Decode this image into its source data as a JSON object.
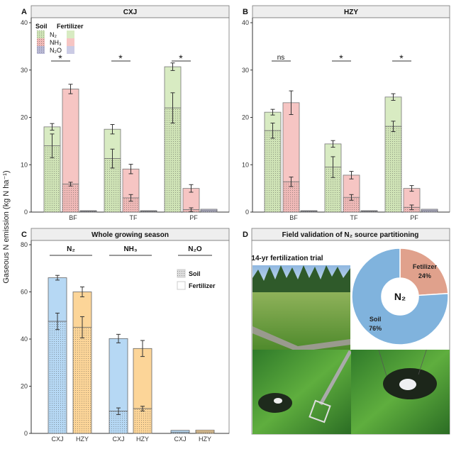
{
  "ylabel": "Gaseous N emission (kg N ha⁻¹)",
  "colors": {
    "N2": "#d8ebc2",
    "N2_soil": "#cfe3b6",
    "NH3": "#f6c5c3",
    "NH3_soil": "#efb9b7",
    "N2O": "#cbcbe4",
    "N2O_soil": "#b9b9d6",
    "CXJ": "#b6d8f4",
    "HZY": "#fcd598",
    "pie_soil": "#80b3dd",
    "pie_fertilizer": "#e0a18c"
  },
  "legend_A": {
    "soil": "Soil",
    "fertilizer": "Fertilizer",
    "items": [
      "N₂",
      "NH₃",
      "N₂O"
    ]
  },
  "legend_C": {
    "soil": "Soil",
    "fertilizer": "Fertilizer"
  },
  "chart_data": [
    {
      "panel": "A",
      "title": "CXJ",
      "type": "bar",
      "stacked": true,
      "categories": [
        "BF",
        "TF",
        "PF"
      ],
      "ylim": [
        0,
        40
      ],
      "yticks": [
        0,
        10,
        20,
        30,
        40
      ],
      "series": [
        {
          "name": "N₂",
          "total": [
            18.0,
            17.5,
            30.7
          ],
          "total_err": [
            0.7,
            1.0,
            0.8
          ],
          "soil": [
            14.0,
            11.3,
            22.0
          ],
          "soil_err": [
            2.5,
            2.0,
            3.2
          ]
        },
        {
          "name": "NH₃",
          "total": [
            26.0,
            9.1,
            5.0
          ],
          "total_err": [
            1.0,
            1.0,
            0.8
          ],
          "soil": [
            5.9,
            3.0,
            0.5
          ],
          "soil_err": [
            0.4,
            0.7,
            0.4
          ]
        },
        {
          "name": "N₂O",
          "total": [
            0.3,
            0.3,
            0.6
          ],
          "total_err": [
            0.05,
            0.05,
            0.1
          ],
          "soil": [
            0.15,
            0.15,
            0.3
          ],
          "soil_err": [
            0.05,
            0.05,
            0.05
          ]
        }
      ],
      "significance": [
        "*",
        "*",
        "*"
      ]
    },
    {
      "panel": "B",
      "title": "HZY",
      "type": "bar",
      "stacked": true,
      "categories": [
        "BF",
        "TF",
        "PF"
      ],
      "ylim": [
        0,
        40
      ],
      "yticks": [
        0,
        10,
        20,
        30,
        40
      ],
      "series": [
        {
          "name": "N₂",
          "total": [
            21.1,
            14.4,
            24.3
          ],
          "total_err": [
            0.6,
            0.7,
            0.7
          ],
          "soil": [
            17.2,
            9.5,
            18.1
          ],
          "soil_err": [
            1.6,
            2.2,
            1.1
          ]
        },
        {
          "name": "NH₃",
          "total": [
            23.1,
            7.8,
            5.0
          ],
          "total_err": [
            2.5,
            0.8,
            0.6
          ],
          "soil": [
            6.4,
            3.1,
            1.0
          ],
          "soil_err": [
            1.0,
            0.6,
            0.5
          ]
        },
        {
          "name": "N₂O",
          "total": [
            0.3,
            0.3,
            0.6
          ],
          "total_err": [
            0.05,
            0.05,
            0.1
          ],
          "soil": [
            0.15,
            0.15,
            0.3
          ],
          "soil_err": [
            0.05,
            0.05,
            0.05
          ]
        }
      ],
      "significance": [
        "ns",
        "*",
        "*"
      ]
    },
    {
      "panel": "C",
      "title": "Whole growing season",
      "type": "bar",
      "stacked": true,
      "groups": [
        "N₂",
        "NH₃",
        "N₂O"
      ],
      "categories": [
        "CXJ",
        "HZY",
        "CXJ",
        "HZY",
        "CXJ",
        "HZY"
      ],
      "ylim": [
        0,
        80
      ],
      "yticks": [
        0,
        20,
        40,
        60,
        80
      ],
      "total": [
        66.0,
        60.0,
        40.2,
        36.0,
        1.3,
        1.4
      ],
      "total_err": [
        1.0,
        2.1,
        1.8,
        3.4,
        0.1,
        0.1
      ],
      "soil": [
        47.5,
        45.0,
        9.4,
        10.5,
        0.5,
        0.6
      ],
      "soil_err": [
        3.5,
        4.5,
        1.4,
        1.0,
        0.1,
        0.1
      ]
    }
  ],
  "panel_D": {
    "label": "D",
    "title": "Field validation of N₂ source partitioning",
    "photo_caption": "14-yr fertilization trial",
    "pie": {
      "type": "pie",
      "center": "N₂",
      "slices": [
        {
          "name": "Fetilizer",
          "value": 24,
          "label": "24%"
        },
        {
          "name": "Soil",
          "value": 76,
          "label": "76%"
        }
      ]
    }
  }
}
